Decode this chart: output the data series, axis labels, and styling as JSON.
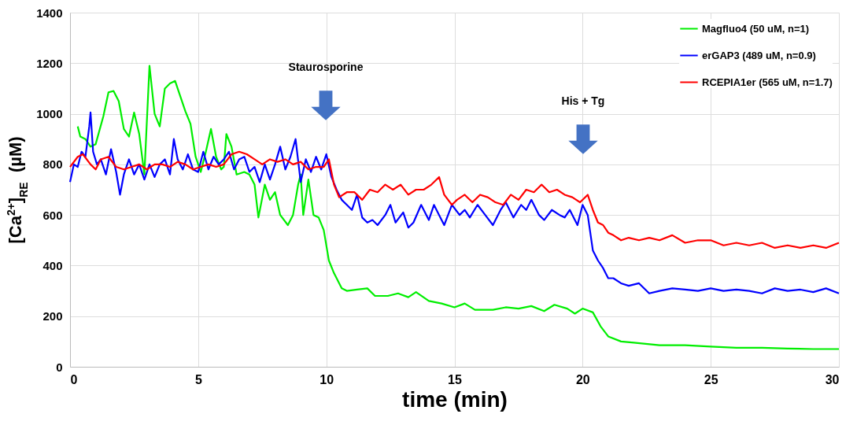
{
  "chart_data": {
    "type": "line",
    "xlabel": "time (min)",
    "ylabel": "[Ca$^{2+}$]$_{RE}$  (µM)",
    "xlim": [
      0,
      30
    ],
    "xticks": [
      0,
      5,
      10,
      15,
      20,
      25,
      30
    ],
    "ylim": [
      0,
      1400
    ],
    "yticks": [
      0,
      200,
      400,
      600,
      800,
      {
        "value": 1000,
        "label": "1000"
      },
      {
        "value": 1200,
        "label": "1200"
      },
      {
        "value": 1400,
        "label": "1400"
      }
    ],
    "grid": true,
    "legend": "top right",
    "annotations": [
      "Staurosporine",
      "His + Tg"
    ],
    "series": [
      {
        "name": "Magfluo4 (50 uM, n=1)",
        "color": "#00ee00",
        "x": [
          0.3,
          0.4,
          0.6,
          0.8,
          1.0,
          1.3,
          1.5,
          1.7,
          1.9,
          2.1,
          2.3,
          2.5,
          2.7,
          2.9,
          3.1,
          3.3,
          3.5,
          3.7,
          3.9,
          4.1,
          4.3,
          4.5,
          4.7,
          4.9,
          5.1,
          5.3,
          5.5,
          5.7,
          5.9,
          6.0,
          6.1,
          6.3,
          6.5,
          6.8,
          7.0,
          7.2,
          7.35,
          7.6,
          7.8,
          8.0,
          8.2,
          8.5,
          8.7,
          8.9,
          9.0,
          9.1,
          9.3,
          9.5,
          9.7,
          9.9,
          10.1,
          10.3,
          10.6,
          10.8,
          11.2,
          11.6,
          11.9,
          12.4,
          12.8,
          13.2,
          13.5,
          14,
          14.5,
          15,
          15.4,
          15.8,
          16.5,
          17,
          17.5,
          18,
          18.5,
          18.9,
          19.4,
          19.7,
          20.0,
          20.4,
          20.7,
          21,
          21.5,
          22,
          23,
          24,
          25,
          26,
          27,
          28,
          29,
          30
        ],
        "values": [
          950,
          910,
          900,
          870,
          880,
          990,
          1085,
          1090,
          1050,
          940,
          910,
          1005,
          920,
          760,
          1190,
          1000,
          950,
          1100,
          1120,
          1130,
          1070,
          1010,
          960,
          830,
          770,
          850,
          940,
          830,
          780,
          790,
          920,
          870,
          760,
          770,
          760,
          720,
          590,
          720,
          660,
          690,
          600,
          560,
          600,
          720,
          760,
          600,
          740,
          600,
          590,
          540,
          420,
          370,
          310,
          300,
          305,
          310,
          280,
          280,
          290,
          275,
          295,
          260,
          250,
          235,
          250,
          225,
          225,
          235,
          230,
          240,
          220,
          245,
          230,
          210,
          230,
          215,
          160,
          120,
          100,
          95,
          85,
          85,
          80,
          75,
          75,
          72,
          70,
          70
        ]
      },
      {
        "name": "erGAP3 (489 uM, n=0.9)",
        "color": "#0000ff",
        "x": [
          0,
          0.15,
          0.3,
          0.45,
          0.6,
          0.75,
          0.8,
          0.9,
          1.05,
          1.2,
          1.4,
          1.6,
          1.8,
          1.95,
          2.1,
          2.3,
          2.5,
          2.7,
          2.9,
          3.1,
          3.3,
          3.5,
          3.7,
          3.9,
          4.05,
          4.2,
          4.4,
          4.6,
          4.8,
          5.0,
          5.2,
          5.4,
          5.6,
          5.8,
          6.0,
          6.2,
          6.4,
          6.6,
          6.8,
          7.0,
          7.2,
          7.4,
          7.6,
          7.8,
          8.0,
          8.2,
          8.4,
          8.6,
          8.8,
          9.0,
          9.2,
          9.4,
          9.6,
          9.8,
          10.0,
          10.2,
          10.4,
          10.6,
          10.8,
          11.0,
          11.2,
          11.4,
          11.6,
          11.8,
          12.0,
          12.3,
          12.5,
          12.7,
          13.0,
          13.2,
          13.4,
          13.7,
          14.0,
          14.2,
          14.4,
          14.6,
          14.9,
          15.2,
          15.4,
          15.6,
          15.9,
          16.2,
          16.5,
          16.8,
          17.0,
          17.3,
          17.6,
          17.8,
          18.0,
          18.3,
          18.5,
          18.8,
          19.1,
          19.3,
          19.5,
          19.8,
          20.0,
          20.2,
          20.4,
          20.6,
          20.8,
          21.0,
          21.2,
          21.5,
          21.8,
          22.2,
          22.6,
          23.0,
          23.5,
          24,
          24.5,
          25,
          25.5,
          26,
          26.5,
          27,
          27.5,
          28,
          28.5,
          29,
          29.5,
          30
        ],
        "values": [
          730,
          800,
          790,
          850,
          830,
          950,
          1005,
          850,
          800,
          820,
          760,
          860,
          770,
          680,
          760,
          820,
          760,
          800,
          740,
          800,
          750,
          800,
          820,
          760,
          900,
          820,
          780,
          840,
          780,
          770,
          850,
          780,
          830,
          800,
          820,
          850,
          780,
          820,
          830,
          770,
          790,
          730,
          800,
          740,
          800,
          870,
          780,
          830,
          900,
          730,
          820,
          770,
          830,
          780,
          840,
          750,
          700,
          660,
          640,
          620,
          680,
          590,
          570,
          580,
          560,
          600,
          640,
          570,
          610,
          550,
          570,
          640,
          580,
          640,
          600,
          560,
          640,
          600,
          620,
          590,
          640,
          600,
          560,
          620,
          650,
          590,
          640,
          620,
          660,
          600,
          580,
          620,
          600,
          590,
          620,
          560,
          640,
          600,
          460,
          420,
          390,
          350,
          350,
          330,
          320,
          330,
          290,
          300,
          310,
          305,
          300,
          310,
          300,
          305,
          300,
          290,
          310,
          300,
          305,
          295,
          310,
          290
        ]
      },
      {
        "name": "RCEPIA1er (565 uM, n=1.7)",
        "color": "#ff0000",
        "x": [
          0,
          0.3,
          0.5,
          0.8,
          1.0,
          1.2,
          1.5,
          1.8,
          2.1,
          2.4,
          2.7,
          3,
          3.3,
          3.6,
          3.9,
          4.2,
          4.5,
          4.8,
          5.1,
          5.4,
          5.7,
          6.0,
          6.3,
          6.6,
          6.9,
          7.2,
          7.5,
          7.8,
          8.1,
          8.4,
          8.7,
          9,
          9.3,
          9.6,
          9.9,
          10.1,
          10.3,
          10.5,
          10.8,
          11.1,
          11.4,
          11.7,
          12,
          12.3,
          12.6,
          12.9,
          13.2,
          13.5,
          13.8,
          14.1,
          14.4,
          14.6,
          14.9,
          15.1,
          15.4,
          15.7,
          16,
          16.3,
          16.6,
          16.9,
          17.2,
          17.5,
          17.8,
          18.1,
          18.4,
          18.7,
          19.0,
          19.3,
          19.6,
          19.9,
          20.2,
          20.4,
          20.6,
          20.8,
          21.0,
          21.2,
          21.5,
          21.8,
          22.2,
          22.6,
          23,
          23.5,
          24,
          24.5,
          25,
          25.5,
          26,
          26.5,
          27,
          27.5,
          28,
          28.5,
          29,
          29.5,
          30
        ],
        "values": [
          790,
          830,
          840,
          800,
          780,
          820,
          830,
          790,
          780,
          790,
          800,
          780,
          800,
          800,
          790,
          810,
          800,
          780,
          790,
          800,
          790,
          800,
          840,
          850,
          840,
          820,
          800,
          820,
          810,
          820,
          800,
          810,
          780,
          790,
          790,
          820,
          720,
          670,
          690,
          690,
          660,
          700,
          690,
          720,
          700,
          720,
          680,
          700,
          700,
          720,
          750,
          680,
          640,
          660,
          680,
          650,
          680,
          670,
          650,
          640,
          680,
          660,
          700,
          690,
          720,
          690,
          700,
          680,
          670,
          650,
          680,
          620,
          570,
          560,
          530,
          520,
          500,
          510,
          500,
          510,
          500,
          520,
          490,
          500,
          500,
          480,
          490,
          480,
          490,
          470,
          480,
          470,
          480,
          470,
          490
        ]
      }
    ]
  }
}
